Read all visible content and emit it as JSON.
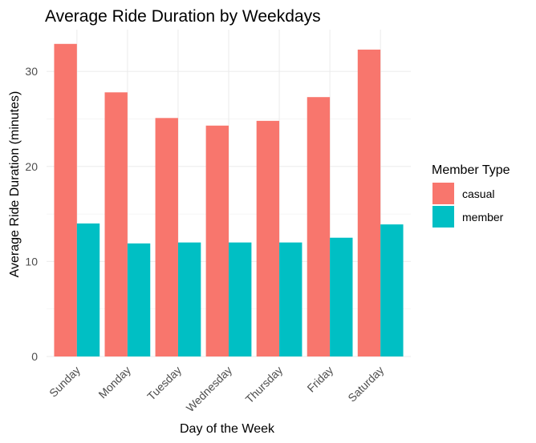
{
  "chart_data": {
    "type": "bar",
    "title": "Average Ride Duration by Weekdays",
    "xlabel": "Day of the Week",
    "ylabel": "Average Ride Duration (minutes)",
    "categories": [
      "Sunday",
      "Monday",
      "Tuesday",
      "Wednesday",
      "Thursday",
      "Friday",
      "Saturday"
    ],
    "series": [
      {
        "name": "casual",
        "color": "#F8766D",
        "values": [
          32.9,
          27.8,
          25.1,
          24.3,
          24.8,
          27.3,
          32.3
        ]
      },
      {
        "name": "member",
        "color": "#00BFC4",
        "values": [
          14.0,
          11.9,
          12.0,
          12.0,
          12.0,
          12.5,
          13.9
        ]
      }
    ],
    "ylim": [
      0,
      34.4
    ],
    "yticks": [
      0,
      10,
      20,
      30
    ],
    "grid": true,
    "legend": {
      "title": "Member Type",
      "position": "right"
    }
  }
}
